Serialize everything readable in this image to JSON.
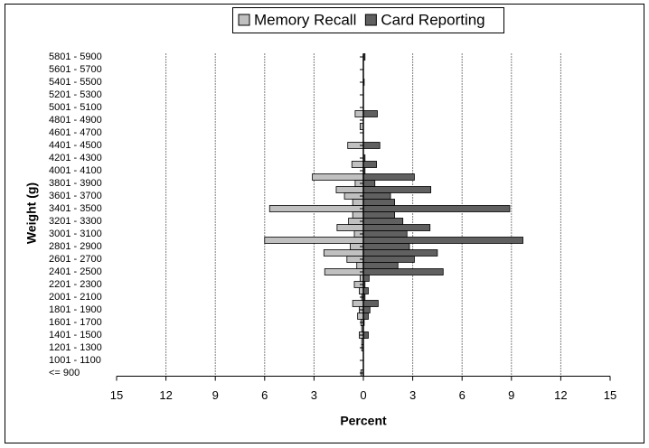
{
  "chart_data": {
    "type": "butterfly_bar",
    "xlabel": "Percent",
    "ylabel": "Weight (g)",
    "categories": [
      "<= 900",
      null,
      "1001 - 1100",
      null,
      "1201 - 1300",
      null,
      "1401 - 1500",
      null,
      "1601 - 1700",
      null,
      "1801 - 1900",
      null,
      "2001 - 2100",
      null,
      "2201 - 2300",
      null,
      "2401 - 2500",
      null,
      "2601 - 2700",
      null,
      "2801 - 2900",
      null,
      "3001 - 3100",
      null,
      "3201 - 3300",
      null,
      "3401 - 3500",
      null,
      "3601 - 3700",
      null,
      "3801 - 3900",
      null,
      "4001 - 4100",
      null,
      "4201 - 4300",
      null,
      "4401 - 4500",
      null,
      "4601 - 4700",
      null,
      "4801 - 4900",
      null,
      "5001 - 5100",
      null,
      "5201 - 5300",
      null,
      "5401 - 5500",
      null,
      "5601 - 5700",
      null,
      "5801 - 5900"
    ],
    "series": [
      {
        "name": "Memory Recall",
        "color": "#c0c0c0",
        "values": [
          -0.15,
          0,
          0,
          0,
          -0.1,
          -0.1,
          -0.25,
          -0.1,
          -0.15,
          -0.35,
          -0.25,
          -0.65,
          -0.1,
          -0.25,
          -0.55,
          -0.2,
          -2.35,
          -0.4,
          -1.0,
          -2.4,
          -0.8,
          -6.0,
          -0.55,
          -1.6,
          -0.9,
          -0.65,
          -5.7,
          -0.65,
          -1.15,
          -1.65,
          -0.5,
          -3.1,
          0,
          -0.7,
          0,
          0,
          -0.95,
          0,
          0,
          -0.2,
          0,
          -0.5,
          0,
          0,
          0,
          0,
          0,
          0,
          0,
          0,
          0
        ]
      },
      {
        "name": "Card Reporting",
        "color": "#606060",
        "values": [
          0,
          0,
          0,
          0,
          0,
          0,
          0.3,
          0,
          0.05,
          0.3,
          0.4,
          0.9,
          0.1,
          0.3,
          0.1,
          0.35,
          4.85,
          2.1,
          3.1,
          4.5,
          2.8,
          9.7,
          2.65,
          4.05,
          2.4,
          1.9,
          8.9,
          1.9,
          1.65,
          4.1,
          0.7,
          3.1,
          0.1,
          0.8,
          0.1,
          0,
          1.0,
          0,
          0,
          0,
          0,
          0.85,
          0,
          0,
          0,
          0,
          0.05,
          0,
          0,
          0,
          0.1
        ]
      }
    ],
    "xlim": [
      -15,
      15
    ],
    "xticks": [
      {
        "value": -15,
        "label": "15"
      },
      {
        "value": -12,
        "label": "12"
      },
      {
        "value": -9,
        "label": "9"
      },
      {
        "value": -6,
        "label": "6"
      },
      {
        "value": -3,
        "label": "3"
      },
      0,
      3,
      6,
      9,
      12,
      15
    ],
    "grid": true,
    "legend": "top"
  }
}
